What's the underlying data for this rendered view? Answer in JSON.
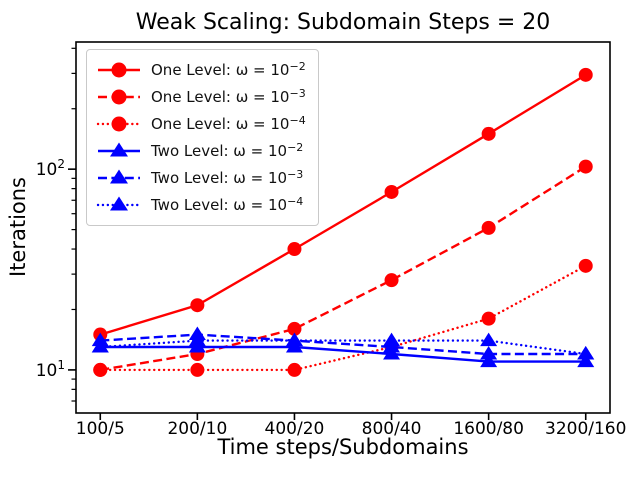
{
  "chart_data": {
    "type": "line",
    "title": "Weak Scaling: Subdomain Steps = 20",
    "xlabel": "Time steps/Subdomains",
    "ylabel": "Iterations",
    "x_categories": [
      "100/5",
      "200/10",
      "400/20",
      "800/40",
      "1600/80",
      "3200/160"
    ],
    "y_scale": "log",
    "ylim": [
      6.1,
      430
    ],
    "y_ticks_major": [
      {
        "value": 10,
        "label": "10¹"
      },
      {
        "value": 100,
        "label": "10²"
      }
    ],
    "y_ticks_minor": [
      7,
      8,
      9,
      20,
      30,
      40,
      50,
      60,
      70,
      80,
      90,
      200,
      300,
      400
    ],
    "legend_position": "upper-left",
    "series": [
      {
        "label": "One Level: ω = 10⁻²",
        "color": "#ff0000",
        "linestyle": "solid",
        "marker": "circle",
        "values": [
          15,
          21,
          40,
          77,
          150,
          295
        ]
      },
      {
        "label": "One Level: ω = 10⁻³",
        "color": "#ff0000",
        "linestyle": "dashed",
        "marker": "circle",
        "values": [
          10,
          12,
          16,
          28,
          51,
          103
        ]
      },
      {
        "label": "One Level: ω = 10⁻⁴",
        "color": "#ff0000",
        "linestyle": "dotted",
        "marker": "circle",
        "values": [
          10,
          10,
          10,
          13,
          18,
          33
        ]
      },
      {
        "label": "Two Level: ω = 10⁻²",
        "color": "#0000ff",
        "linestyle": "solid",
        "marker": "triangle",
        "values": [
          13,
          13,
          13,
          12,
          11,
          11
        ]
      },
      {
        "label": "Two Level: ω = 10⁻³",
        "color": "#0000ff",
        "linestyle": "dashed",
        "marker": "triangle",
        "values": [
          14,
          15,
          14,
          13,
          12,
          12
        ]
      },
      {
        "label": "Two Level: ω = 10⁻⁴",
        "color": "#0000ff",
        "linestyle": "dotted",
        "marker": "triangle",
        "values": [
          13,
          14,
          14,
          14,
          14,
          12
        ]
      }
    ]
  }
}
